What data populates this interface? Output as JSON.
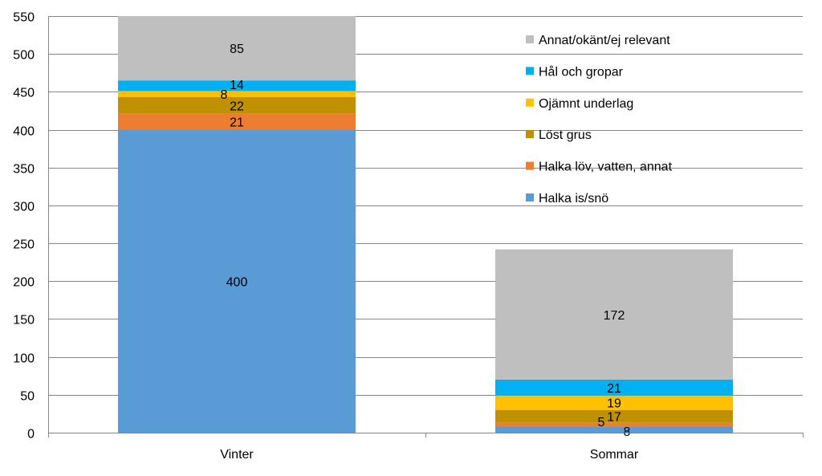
{
  "chart_data": {
    "type": "bar",
    "stacked": true,
    "categories": [
      "Vinter",
      "Sommar"
    ],
    "series": [
      {
        "name": "Halka is/snö",
        "values": [
          400,
          8
        ],
        "color": "#5B9BD5"
      },
      {
        "name": "Halka löv, vatten, annat",
        "values": [
          21,
          5
        ],
        "color": "#ED7D31"
      },
      {
        "name": "Löst grus",
        "values": [
          22,
          17
        ],
        "color": "#BF9000"
      },
      {
        "name": "Ojämnt underlag",
        "values": [
          8,
          19
        ],
        "color": "#FFC000"
      },
      {
        "name": "Hål och gropar",
        "values": [
          14,
          21
        ],
        "color": "#00B0F0"
      },
      {
        "name": "Annat/okänt/ej relevant",
        "values": [
          85,
          172
        ],
        "color": "#BFBFBF"
      }
    ],
    "ylim": [
      0,
      550
    ],
    "ytick_step": 50,
    "grid": true,
    "legend_position": "top-right",
    "legend_order": [
      5,
      4,
      3,
      2,
      1,
      0
    ],
    "title": "",
    "xlabel": "",
    "ylabel": ""
  }
}
